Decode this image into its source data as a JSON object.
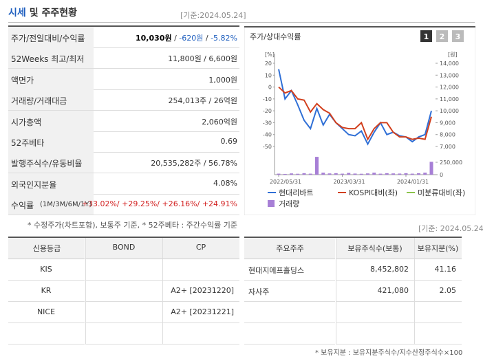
{
  "header": {
    "title": "시세",
    "subtitle": "및 주주현황",
    "date": "[기준:2024.05.24]"
  },
  "quote_table": {
    "rows": [
      {
        "label": "주가/전일대비/수익률",
        "parts": [
          {
            "text": "10,030원",
            "color": "#000000",
            "bold": true
          },
          {
            "text": " / ",
            "color": "#333333"
          },
          {
            "text": "-620원",
            "color": "#1f5fbf"
          },
          {
            "text": " / ",
            "color": "#333333"
          },
          {
            "text": "-5.82%",
            "color": "#1f5fbf"
          }
        ]
      },
      {
        "label": "52Weeks 최고/최저",
        "parts": [
          {
            "text": "11,800원 / 6,600원",
            "color": "#333333"
          }
        ]
      },
      {
        "label": "액면가",
        "parts": [
          {
            "text": "1,000원",
            "color": "#333333"
          }
        ]
      },
      {
        "label": "거래량/거래대금",
        "parts": [
          {
            "text": "254,013주 / 26억원",
            "color": "#333333"
          }
        ]
      },
      {
        "label": "시가총액",
        "parts": [
          {
            "text": "2,060억원",
            "color": "#333333"
          }
        ]
      },
      {
        "label": "52주베타",
        "parts": [
          {
            "text": "0.69",
            "color": "#333333"
          }
        ]
      },
      {
        "label": "발행주식수/유동비율",
        "parts": [
          {
            "text": "20,535,282주 / 56.78%",
            "color": "#333333"
          }
        ]
      },
      {
        "label": "외국인지분율",
        "parts": [
          {
            "text": "4.08%",
            "color": "#333333"
          }
        ]
      },
      {
        "label": "수익률",
        "label_note": "(1M/3M/6M/1Y)",
        "parts": [
          {
            "text": "+33.02%/ +29.25%/ +26.16%/ +24.91%",
            "color": "#d21e1e"
          }
        ]
      }
    ],
    "footnote": "* 수정주가(차트포함), 보통주 기준, * 52주베타 : 주간수익률 기준"
  },
  "chart_data": {
    "type": "line",
    "title": "주가/상대수익률",
    "buttons": [
      "1",
      "2",
      "3"
    ],
    "y_unit": "[%]",
    "y2_unit": "[원]",
    "ylim": [
      -50,
      20
    ],
    "yticks": [
      20,
      10,
      0,
      -10,
      -20,
      -30,
      -40,
      -50
    ],
    "y2lim": [
      7000,
      14000
    ],
    "y2ticks": [
      {
        "value": 14000,
        "label": "14,000"
      },
      {
        "value": 13000,
        "label": "13,000"
      },
      {
        "value": 12000,
        "label": "12,000"
      },
      {
        "value": 11000,
        "label": "11,000"
      },
      {
        "value": 10000,
        "label": "10,000"
      },
      {
        "value": 9000,
        "label": "9,000"
      },
      {
        "value": 8000,
        "label": "8,000"
      },
      {
        "value": 7000,
        "label": "7,000"
      }
    ],
    "y3lim": [
      0,
      250000
    ],
    "y3ticks": [
      {
        "value": 250000,
        "label": "250,000"
      },
      0
    ],
    "xlim": [
      0,
      24
    ],
    "xticks": [
      {
        "value": 0,
        "label": "2022/05/31"
      },
      {
        "value": 10,
        "label": "2023/03/31"
      },
      {
        "value": 20,
        "label": "2024/01/31"
      }
    ],
    "series": [
      {
        "name": "현대리바트",
        "color": "#2f6fd6",
        "values": [
          15,
          -10,
          -3,
          -15,
          -28,
          -35,
          -18,
          -32,
          -23,
          -30,
          -35,
          -40,
          -41,
          -37,
          -48,
          -38,
          -30,
          -40,
          -38,
          -41,
          -42,
          -46,
          -42,
          -40,
          -20
        ]
      },
      {
        "name": "KOSPI대비(좌)",
        "color": "#d2401e",
        "values": [
          0,
          -5,
          -3,
          -10,
          -11,
          -21,
          -14,
          -19,
          -22,
          -30,
          -34,
          -35,
          -35,
          -30,
          -44,
          -35,
          -30,
          -30,
          -38,
          -42,
          -42,
          -44,
          -43,
          -44,
          -25
        ]
      },
      {
        "name": "미분류대비(좌)",
        "color": "#8bc34a",
        "values": [
          null,
          null,
          null,
          null,
          null,
          null,
          null,
          null,
          null,
          null,
          null,
          null,
          null,
          null,
          null,
          null,
          null,
          null,
          null,
          null,
          null,
          null,
          null,
          null,
          null
        ]
      },
      {
        "name": "거래량",
        "color": "#a77fd6",
        "type": "bar",
        "axis": "y3",
        "values": [
          20000,
          15000,
          25000,
          18000,
          30000,
          20000,
          360000,
          40000,
          25000,
          30000,
          20000,
          35000,
          22000,
          18000,
          25000,
          40000,
          20000,
          30000,
          25000,
          22000,
          30000,
          20000,
          28000,
          40000,
          260000
        ]
      }
    ]
  },
  "credit_table": {
    "header": [
      "신용등급",
      "BOND",
      "CP"
    ],
    "rows": [
      [
        "KIS",
        null,
        null
      ],
      [
        "KR",
        null,
        "A2+ [20231220]"
      ],
      [
        "NICE",
        null,
        "A2+ [20231221]"
      ],
      [
        null,
        null,
        null
      ]
    ]
  },
  "holder_table": {
    "date": "[기준: 2024.05.24]",
    "header": [
      "주요주주",
      "보유주식수(보통)",
      "보유지분(%)"
    ],
    "rows": [
      [
        "현대지에프홀딩스",
        "8,452,802",
        "41.16"
      ],
      [
        "자사주",
        "421,080",
        "2.05"
      ],
      [
        null,
        null,
        null
      ],
      [
        null,
        null,
        null
      ]
    ],
    "footnote": "* 보유지분 : 보유지분주식수/지수산정주식수×100"
  }
}
